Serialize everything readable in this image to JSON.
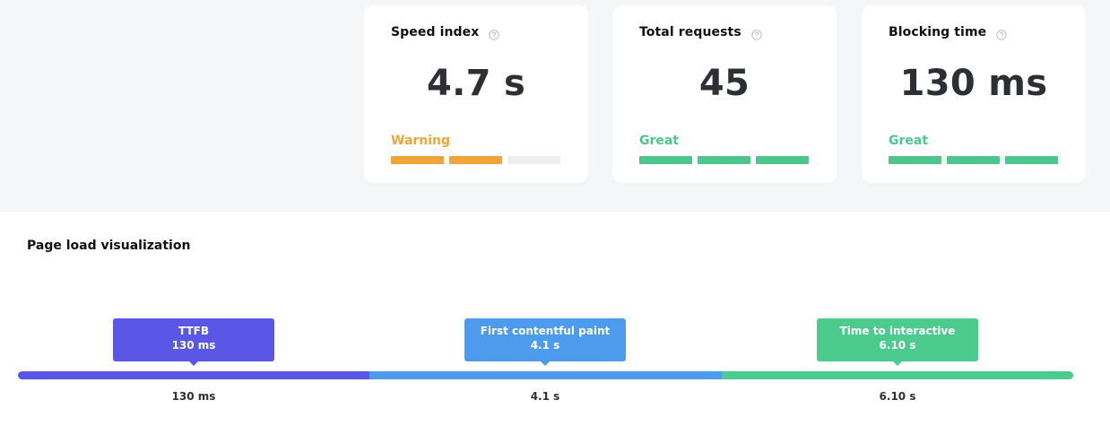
{
  "metrics": [
    {
      "title": "Speed index",
      "help_icon": "question-circle-icon",
      "value": "4.7 s",
      "status": "Warning",
      "status_color": "#f0a53a",
      "bar_level": 0.6667,
      "bar_segments": [
        "#f0a53a",
        "#f0a53a",
        "#eceef1"
      ]
    },
    {
      "title": "Total requests",
      "help_icon": "question-circle-icon",
      "value": "45",
      "status": "Great",
      "status_color": "#4dc68e",
      "bar_level": 1,
      "bar_segments": [
        "#4dc68e",
        "#4dc68e",
        "#4dc68e"
      ]
    },
    {
      "title": "Blocking time",
      "help_icon": "question-circle-icon",
      "value": "130 ms",
      "status": "Great",
      "status_color": "#4dc68e",
      "bar_level": 1,
      "bar_segments": [
        "#4dc68e",
        "#4dc68e",
        "#4dc68e"
      ]
    }
  ],
  "page_load": {
    "title": "Page load visualization",
    "milestones": [
      {
        "name": "TTFB",
        "value": "130 ms",
        "color": "#5b57e6",
        "axis_label": "130 ms"
      },
      {
        "name": "First contentful paint",
        "value": "4.1 s",
        "color": "#4c9bed",
        "axis_label": "4.1 s"
      },
      {
        "name": "Time to interactive",
        "value": "6.10 s",
        "color": "#4ccb8e",
        "axis_label": "6.10 s"
      }
    ],
    "track_colors": [
      "#5b57e6",
      "#4c9bed",
      "#4ccb8e"
    ]
  }
}
